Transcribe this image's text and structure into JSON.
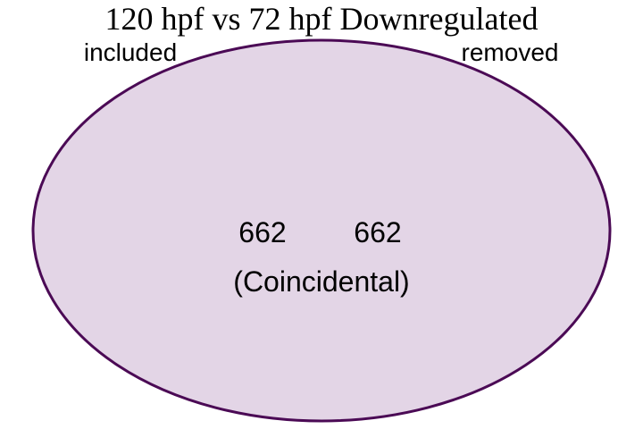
{
  "diagram": {
    "title": "120 hpf vs 72 hpf Downregulated",
    "sets": [
      {
        "name": "included",
        "count": "662"
      },
      {
        "name": "removed",
        "count": "662"
      }
    ],
    "relation_note": "(Coincidental)",
    "colors": {
      "fill": "#e3d5e6",
      "stroke": "#4b0a55"
    }
  }
}
